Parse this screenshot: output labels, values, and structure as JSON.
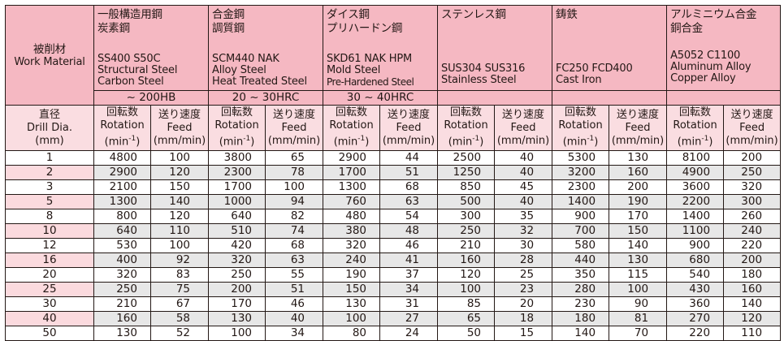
{
  "work_material": {
    "jp": "被削材",
    "en": "Work Material"
  },
  "materials": [
    {
      "jp": [
        "一般構造用鋼",
        "炭素鋼"
      ],
      "grades": "SS400 S50C",
      "en": [
        "Structural Steel",
        "Carbon Steel"
      ],
      "hardness": "~ 200HB"
    },
    {
      "jp": [
        "合金鋼",
        "調質鋼"
      ],
      "grades": "SCM440 NAK",
      "en": [
        "Alloy Steel",
        "Heat Treated Steel"
      ],
      "hardness": "20 ~ 30HRC"
    },
    {
      "jp": [
        "ダイス鋼",
        "プリハードン鋼"
      ],
      "grades": "SKD61 NAK HPM",
      "en": [
        "Mold Steel",
        "Pre-Hardened Steel"
      ],
      "hardness": "30 ~ 40HRC"
    },
    {
      "jp": [
        "ステンレス鋼"
      ],
      "grades": "SUS304 SUS316",
      "en": [
        "Stainless Steel"
      ],
      "hardness": ""
    },
    {
      "jp": [
        "鋳鉄"
      ],
      "grades": "FC250  FCD400",
      "en": [
        "Cast Iron"
      ],
      "hardness": ""
    },
    {
      "jp": [
        "アルミニウム合金",
        "銅合金"
      ],
      "grades": "A5052 C1100",
      "en": [
        "Aluminum Alloy",
        "Copper Alloy"
      ],
      "hardness": ""
    }
  ],
  "subheaders": {
    "diameter": [
      "直径",
      "Drill Dia.",
      "(mm)"
    ],
    "rotation": [
      "回転数",
      "Rotation",
      "(min",
      "-1",
      ")"
    ],
    "feed": [
      "送り速度",
      "Feed",
      "(mm/min)"
    ]
  },
  "rows": [
    [
      "1",
      "4800",
      "100",
      "3800",
      "65",
      "2900",
      "44",
      "2500",
      "40",
      "5300",
      "130",
      "8100",
      "200"
    ],
    [
      "2",
      "2900",
      "120",
      "2300",
      "78",
      "1700",
      "51",
      "1250",
      "40",
      "3200",
      "160",
      "4900",
      "250"
    ],
    [
      "3",
      "2100",
      "150",
      "1700",
      "100",
      "1300",
      "68",
      "850",
      "45",
      "2300",
      "200",
      "3600",
      "320"
    ],
    [
      "5",
      "1300",
      "140",
      "1000",
      "94",
      "760",
      "63",
      "500",
      "40",
      "1400",
      "190",
      "2200",
      "300"
    ],
    [
      "8",
      "800",
      "120",
      "640",
      "82",
      "480",
      "54",
      "300",
      "35",
      "900",
      "170",
      "1400",
      "260"
    ],
    [
      "10",
      "640",
      "110",
      "510",
      "74",
      "380",
      "48",
      "250",
      "32",
      "700",
      "150",
      "1100",
      "240"
    ],
    [
      "12",
      "530",
      "100",
      "420",
      "68",
      "320",
      "46",
      "210",
      "30",
      "580",
      "140",
      "900",
      "220"
    ],
    [
      "16",
      "400",
      "92",
      "320",
      "63",
      "240",
      "41",
      "160",
      "28",
      "440",
      "130",
      "680",
      "200"
    ],
    [
      "20",
      "320",
      "83",
      "250",
      "55",
      "190",
      "37",
      "120",
      "25",
      "350",
      "115",
      "540",
      "180"
    ],
    [
      "25",
      "250",
      "75",
      "200",
      "51",
      "150",
      "34",
      "100",
      "23",
      "280",
      "100",
      "430",
      "160"
    ],
    [
      "30",
      "210",
      "67",
      "170",
      "46",
      "130",
      "31",
      "85",
      "20",
      "230",
      "90",
      "360",
      "140"
    ],
    [
      "40",
      "160",
      "58",
      "130",
      "40",
      "100",
      "27",
      "65",
      "18",
      "180",
      "81",
      "270",
      "120"
    ],
    [
      "50",
      "130",
      "52",
      "100",
      "34",
      "80",
      "24",
      "50",
      "15",
      "140",
      "70",
      "220",
      "110"
    ]
  ],
  "colors": {
    "header": "#f5b8c2",
    "subheader": "#fadde1",
    "alt_row": "#e7e7e7",
    "alt_dia": "#fbdade"
  }
}
